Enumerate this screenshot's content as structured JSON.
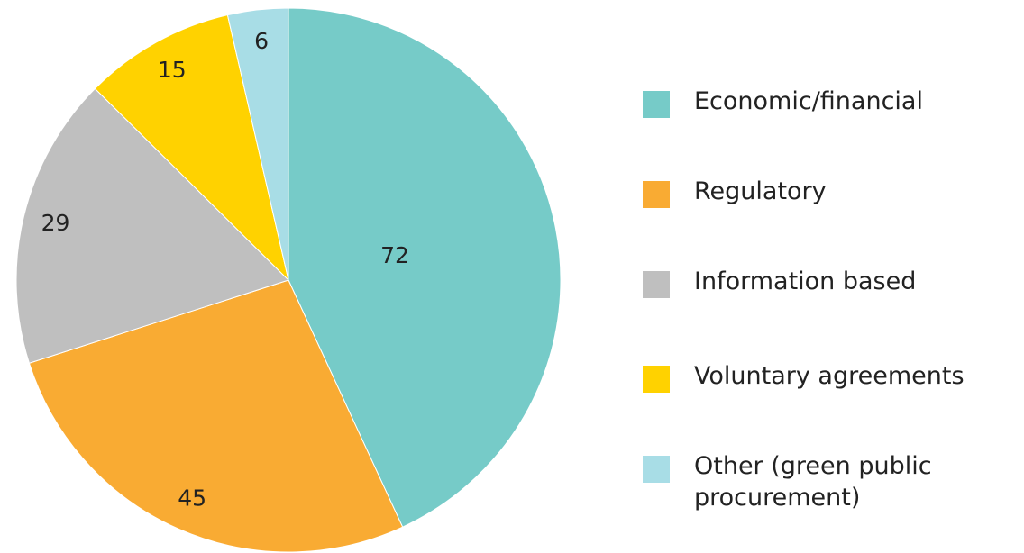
{
  "chart_data": {
    "type": "pie",
    "categories": [
      "Economic/financial",
      "Regulatory",
      "Information based",
      "Voluntary agreements",
      "Other (green public procurement)"
    ],
    "values": [
      72,
      45,
      29,
      15,
      6
    ],
    "colors": [
      "#76cbc8",
      "#f9ab33",
      "#bfbfbf",
      "#ffd200",
      "#a8dde6"
    ]
  }
}
